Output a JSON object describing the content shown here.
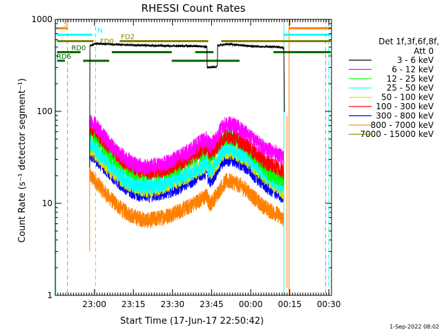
{
  "chart_data": {
    "type": "line",
    "title": "RHESSI Count Rates",
    "xlabel": "Start Time (17-Jun-17 22:50:42)",
    "ylabel": "Count Rate (s⁻¹ detector segment⁻¹)",
    "yscale": "log",
    "ylim": [
      1,
      1000
    ],
    "xlim_minutes": [
      -5.7,
      100.3
    ],
    "x_unit": "minutes after 22:50:42",
    "xticks": [
      {
        "label": "23:00",
        "value": 9.3
      },
      {
        "label": "23:15",
        "value": 24.3
      },
      {
        "label": "23:30",
        "value": 39.3
      },
      {
        "label": "23:45",
        "value": 54.3
      },
      {
        "label": "00:00",
        "value": 69.3
      },
      {
        "label": "00:15",
        "value": 84.3
      },
      {
        "label": "00:30",
        "value": 99.3
      }
    ],
    "yticks": [
      {
        "label": "1",
        "value": 1
      },
      {
        "label": "10",
        "value": 10
      },
      {
        "label": "100",
        "value": 100
      },
      {
        "label": "1000",
        "value": 1000
      }
    ],
    "legend": {
      "position": "right",
      "header_line1": "Det 1f,3f,6f,8f,",
      "header_line2": "Att 0",
      "entries": [
        {
          "label": "3 - 6 keV",
          "color": "#000000"
        },
        {
          "label": "6 - 12 keV",
          "color": "#ff00ff"
        },
        {
          "label": "12 - 25 keV",
          "color": "#00ff00"
        },
        {
          "label": "25 - 50 keV",
          "color": "#00ffff"
        },
        {
          "label": "50 - 100 keV",
          "color": "#e0e000"
        },
        {
          "label": "100 - 300 keV",
          "color": "#ff0000"
        },
        {
          "label": "300 - 800 keV",
          "color": "#0000ff"
        },
        {
          "label": "800 - 7000 keV",
          "color": "#ff8000"
        },
        {
          "label": "7000 - 15000 keV",
          "color": "#808000"
        }
      ]
    },
    "series": [
      {
        "name": "3 - 6 keV",
        "color": "#000000",
        "points": [
          [
            7.5,
            25
          ],
          [
            7.6,
            520
          ],
          [
            10,
            545
          ],
          [
            20,
            530
          ],
          [
            30,
            520
          ],
          [
            40,
            515
          ],
          [
            50,
            510
          ],
          [
            52.5,
            505
          ],
          [
            52.6,
            300
          ],
          [
            56,
            305
          ],
          [
            56.5,
            310
          ],
          [
            56.6,
            520
          ],
          [
            60,
            540
          ],
          [
            70,
            510
          ],
          [
            80,
            500
          ],
          [
            82,
            490
          ],
          [
            82.1,
            280
          ],
          [
            82.3,
            75
          ]
        ]
      },
      {
        "name": "6 - 12 keV",
        "color": "#ff00ff",
        "points": [
          [
            7.6,
            80
          ],
          [
            10,
            70
          ],
          [
            15,
            45
          ],
          [
            20,
            33
          ],
          [
            25,
            26
          ],
          [
            30,
            25
          ],
          [
            35,
            26
          ],
          [
            40,
            30
          ],
          [
            45,
            36
          ],
          [
            50,
            46
          ],
          [
            52.5,
            50
          ],
          [
            53,
            45
          ],
          [
            54,
            42
          ],
          [
            56,
            50
          ],
          [
            58,
            65
          ],
          [
            60,
            73
          ],
          [
            63,
            70
          ],
          [
            67,
            60
          ],
          [
            72,
            45
          ],
          [
            76,
            38
          ],
          [
            80,
            34
          ],
          [
            82,
            30
          ]
        ]
      },
      {
        "name": "12 - 25 keV",
        "color": "#00ff00",
        "points": [
          [
            7.6,
            60
          ],
          [
            10,
            52
          ],
          [
            15,
            34
          ],
          [
            20,
            26
          ],
          [
            25,
            22
          ],
          [
            30,
            21
          ],
          [
            35,
            22
          ],
          [
            40,
            24
          ],
          [
            45,
            29
          ],
          [
            50,
            35
          ],
          [
            52.5,
            38
          ],
          [
            53,
            33
          ],
          [
            54,
            31
          ],
          [
            56,
            38
          ],
          [
            58,
            48
          ],
          [
            60,
            53
          ],
          [
            63,
            50
          ],
          [
            67,
            43
          ],
          [
            72,
            30
          ],
          [
            76,
            22
          ],
          [
            80,
            19
          ],
          [
            82,
            17
          ]
        ]
      },
      {
        "name": "25 - 50 keV",
        "color": "#00ffff",
        "points": [
          [
            7.6,
            44
          ],
          [
            10,
            38
          ],
          [
            15,
            26
          ],
          [
            20,
            19
          ],
          [
            25,
            16
          ],
          [
            30,
            15
          ],
          [
            35,
            16
          ],
          [
            40,
            18
          ],
          [
            45,
            21
          ],
          [
            50,
            25
          ],
          [
            52.5,
            28
          ],
          [
            53,
            24
          ],
          [
            54,
            23
          ],
          [
            56,
            28
          ],
          [
            58,
            35
          ],
          [
            60,
            40
          ],
          [
            63,
            38
          ],
          [
            67,
            33
          ],
          [
            72,
            25
          ],
          [
            76,
            19
          ],
          [
            80,
            16
          ],
          [
            82,
            14
          ]
        ]
      },
      {
        "name": "50 - 100 keV",
        "color": "#e0e000",
        "points": [
          [
            7.6,
            40
          ],
          [
            10,
            34
          ],
          [
            15,
            24
          ],
          [
            20,
            18
          ],
          [
            25,
            15
          ],
          [
            30,
            14
          ],
          [
            35,
            15
          ],
          [
            40,
            17
          ],
          [
            45,
            20
          ],
          [
            50,
            24
          ],
          [
            52.5,
            26
          ],
          [
            53,
            23
          ],
          [
            54,
            22
          ],
          [
            56,
            26
          ],
          [
            58,
            33
          ],
          [
            60,
            37
          ],
          [
            63,
            36
          ],
          [
            67,
            31
          ],
          [
            72,
            23
          ],
          [
            76,
            18
          ],
          [
            80,
            15
          ],
          [
            82,
            13
          ]
        ]
      },
      {
        "name": "100 - 300 keV",
        "color": "#ff0000",
        "points": [
          [
            7.6,
            66
          ],
          [
            10,
            60
          ],
          [
            15,
            42
          ],
          [
            20,
            30
          ],
          [
            25,
            24
          ],
          [
            30,
            22
          ],
          [
            35,
            23
          ],
          [
            40,
            26
          ],
          [
            45,
            31
          ],
          [
            50,
            38
          ],
          [
            52.5,
            42
          ],
          [
            53,
            37
          ],
          [
            54,
            35
          ],
          [
            56,
            40
          ],
          [
            58,
            48
          ],
          [
            60,
            55
          ],
          [
            63,
            52
          ],
          [
            67,
            44
          ],
          [
            72,
            33
          ],
          [
            76,
            27
          ],
          [
            80,
            24
          ],
          [
            82,
            22
          ]
        ]
      },
      {
        "name": "300 - 800 keV",
        "color": "#0000ff",
        "points": [
          [
            7.6,
            36
          ],
          [
            10,
            31
          ],
          [
            15,
            22
          ],
          [
            20,
            16
          ],
          [
            25,
            13
          ],
          [
            30,
            12.5
          ],
          [
            35,
            13
          ],
          [
            40,
            14.5
          ],
          [
            45,
            17
          ],
          [
            50,
            21
          ],
          [
            52.5,
            23
          ],
          [
            53,
            19
          ],
          [
            54,
            18
          ],
          [
            56,
            22
          ],
          [
            58,
            28
          ],
          [
            60,
            31
          ],
          [
            63,
            30
          ],
          [
            67,
            26
          ],
          [
            72,
            19
          ],
          [
            76,
            15
          ],
          [
            80,
            13
          ],
          [
            82,
            12
          ]
        ]
      },
      {
        "name": "800 - 7000 keV",
        "color": "#ff8000",
        "points": [
          [
            7.6,
            20
          ],
          [
            10,
            17
          ],
          [
            15,
            11.5
          ],
          [
            20,
            8.5
          ],
          [
            25,
            7
          ],
          [
            30,
            6.5
          ],
          [
            35,
            7
          ],
          [
            40,
            7.8
          ],
          [
            45,
            9
          ],
          [
            50,
            11
          ],
          [
            52.5,
            12
          ],
          [
            53,
            10.5
          ],
          [
            54,
            10
          ],
          [
            56,
            12
          ],
          [
            58,
            15
          ],
          [
            60,
            17.5
          ],
          [
            63,
            17
          ],
          [
            67,
            14.5
          ],
          [
            72,
            10.5
          ],
          [
            76,
            8.5
          ],
          [
            80,
            7.5
          ],
          [
            82,
            6.5
          ]
        ]
      }
    ],
    "state_lines": [
      {
        "label": "S",
        "color": "#ff8000",
        "y": 800,
        "segments": [
          [
            -5,
            -1
          ]
        ]
      },
      {
        "label": "",
        "color": "#ff8000",
        "y": 800,
        "segments": [
          [
            84,
            100
          ]
        ]
      },
      {
        "label": "N",
        "color": "#00ffff",
        "y": 680,
        "segments": [
          [
            -5,
            8.5
          ]
        ]
      },
      {
        "label": "",
        "color": "#00ffff",
        "y": 680,
        "segments": [
          [
            82,
            100
          ]
        ]
      },
      {
        "label": "FD2",
        "color": "#808000",
        "y": 580,
        "segments": [
          [
            -5,
            9
          ],
          [
            19,
            53
          ],
          [
            58,
            100
          ]
        ]
      },
      {
        "label": "FD0",
        "color": "#808000",
        "y": 520,
        "segments": []
      },
      {
        "label": "RD0",
        "color": "#006400",
        "y": 440,
        "segments": [
          [
            -5,
            4
          ],
          [
            16,
            39
          ],
          [
            48,
            55
          ],
          [
            78,
            100
          ]
        ]
      },
      {
        "label": "RD6",
        "color": "#006400",
        "y": 355,
        "segments": [
          [
            -5,
            -2
          ],
          [
            5,
            15
          ],
          [
            39,
            65
          ]
        ]
      }
    ],
    "vertical_lines": [
      {
        "x": -5.5,
        "color": "#00ffff",
        "style": "solid"
      },
      {
        "x": -1.0,
        "color": "#ff8000",
        "style": "dashed"
      },
      {
        "x": 9.8,
        "color": "#00ffff",
        "style": "dashed"
      },
      {
        "x": 7.5,
        "color": "#ff8000",
        "style": "solid",
        "y_range": [
          3,
          80
        ]
      },
      {
        "x": 82.0,
        "color": "#00ffff",
        "style": "solid"
      },
      {
        "x": 84.0,
        "color": "#ff8000",
        "style": "solid"
      },
      {
        "x": 83.2,
        "color": "#ff8000",
        "style": "solid",
        "y_range": [
          1.2,
          90
        ]
      },
      {
        "x": 98.0,
        "color": "#ff8000",
        "style": "dashed"
      },
      {
        "x": 99.2,
        "color": "#00ffff",
        "style": "dashed"
      }
    ],
    "footer_timestamp": "1-Sep-2022 08:02"
  }
}
